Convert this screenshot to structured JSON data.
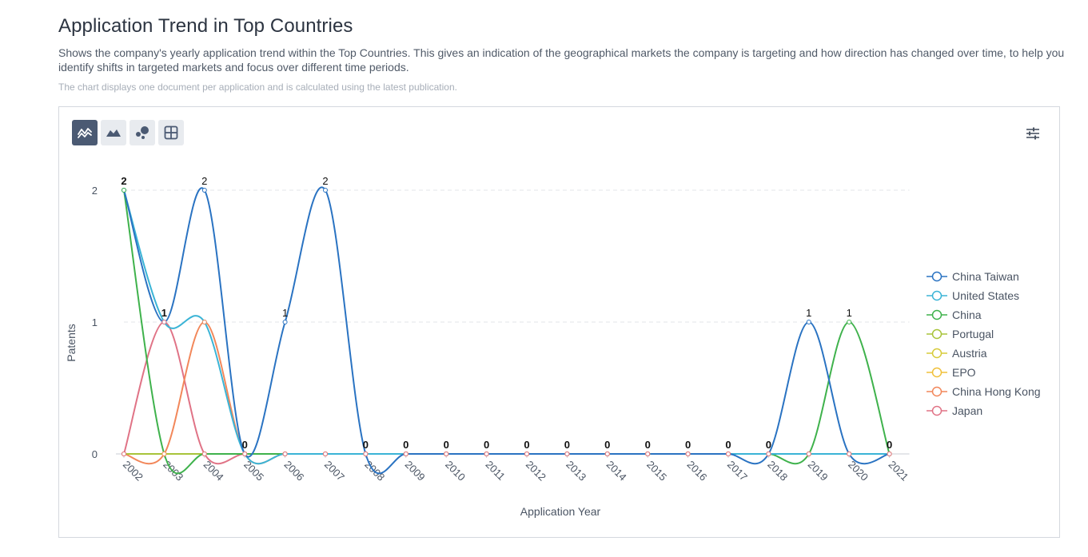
{
  "header": {
    "title": "Application Trend in Top Countries",
    "description": "Shows the company's yearly application trend within the Top Countries. This gives an indication of the geographical markets the company is targeting and how direction has changed over time, to help you identify shifts in targeted markets and focus over different time periods.",
    "note": "The chart displays one document per application and is calculated using the latest publication."
  },
  "toolbar": {
    "buttons": [
      {
        "icon": "line-chart-icon",
        "active": true
      },
      {
        "icon": "area-chart-icon",
        "active": false
      },
      {
        "icon": "bubble-chart-icon",
        "active": false
      },
      {
        "icon": "table-icon",
        "active": false
      }
    ],
    "settings_icon": "sliders-icon"
  },
  "chart_data": {
    "type": "line",
    "xlabel": "Application Year",
    "ylabel": "Patents",
    "ylim": [
      0,
      2
    ],
    "yticks": [
      0,
      1,
      2
    ],
    "grid": "horizontal dashed",
    "legend_position": "right",
    "x": [
      2002,
      2003,
      2004,
      2005,
      2006,
      2007,
      2008,
      2009,
      2010,
      2011,
      2012,
      2013,
      2014,
      2015,
      2016,
      2017,
      2018,
      2019,
      2020,
      2021
    ],
    "series": [
      {
        "name": "China Taiwan",
        "color": "#2a73c2",
        "values": [
          2,
          1,
          2,
          0,
          1,
          2,
          0,
          0,
          0,
          0,
          0,
          0,
          0,
          0,
          0,
          0,
          0,
          1,
          0,
          0
        ]
      },
      {
        "name": "United States",
        "color": "#3bb4d6",
        "values": [
          2,
          1,
          1,
          0,
          0,
          0,
          0,
          0,
          0,
          0,
          0,
          0,
          0,
          0,
          0,
          0,
          0,
          0,
          0,
          0
        ]
      },
      {
        "name": "China",
        "color": "#3fb24c",
        "values": [
          2,
          0,
          0,
          0,
          0,
          0,
          0,
          0,
          0,
          0,
          0,
          0,
          0,
          0,
          0,
          0,
          0,
          0,
          1,
          0
        ]
      },
      {
        "name": "Portugal",
        "color": "#a8c43a",
        "values": [
          0,
          0,
          0,
          0,
          0,
          0,
          0,
          0,
          0,
          0,
          0,
          0,
          0,
          0,
          0,
          0,
          0,
          0,
          0,
          0
        ]
      },
      {
        "name": "Austria",
        "color": "#d7cb3a",
        "values": [
          0,
          0,
          0,
          0,
          0,
          0,
          0,
          0,
          0,
          0,
          0,
          0,
          0,
          0,
          0,
          0,
          0,
          0,
          0,
          0
        ]
      },
      {
        "name": "EPO",
        "color": "#f0c03a",
        "values": [
          0,
          0,
          0,
          0,
          0,
          0,
          0,
          0,
          0,
          0,
          0,
          0,
          0,
          0,
          0,
          0,
          0,
          0,
          0,
          0
        ]
      },
      {
        "name": "China Hong Kong",
        "color": "#f2875a",
        "values": [
          0,
          0,
          1,
          0,
          0,
          0,
          0,
          0,
          0,
          0,
          0,
          0,
          0,
          0,
          0,
          0,
          0,
          0,
          0,
          0
        ]
      },
      {
        "name": "Japan",
        "color": "#e07386",
        "values": [
          0,
          1,
          0,
          0,
          0,
          0,
          0,
          0,
          0,
          0,
          0,
          0,
          0,
          0,
          0,
          0,
          0,
          0,
          0,
          0
        ]
      }
    ]
  }
}
